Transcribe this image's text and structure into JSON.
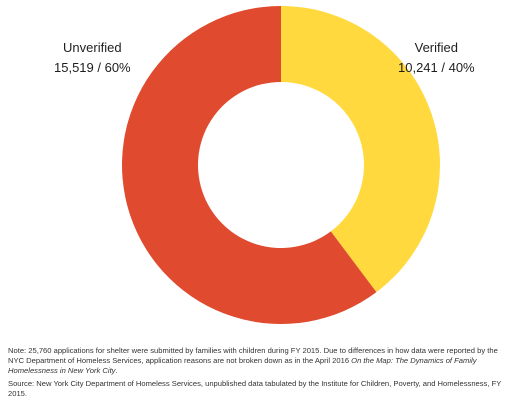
{
  "chart_data": {
    "type": "pie",
    "donut": true,
    "title": "",
    "legend": "none",
    "slices": [
      {
        "name": "Verified",
        "count": 10241,
        "percent": 40,
        "value_label": "10,241 / 40%",
        "color": "#FFD93D"
      },
      {
        "name": "Unverified",
        "count": 15519,
        "percent": 60,
        "value_label": "15,519 / 60%",
        "color": "#E04A2F"
      }
    ],
    "total": 25760
  },
  "notes": {
    "note_text": "Note: 25,760 applications for shelter were submitted by families with children during FY 2015. Due to differences in how data were reported by the NYC Department of Homeless Services, application reasons are not broken down as in the April 2016 ",
    "note_italic": "On the Map: The Dynamics of Family Homelessness in New York City",
    "note_end": ".",
    "source": "Source: New York City Department of Homeless Services, unpublished data tabulated by the Institute for Children, Poverty, and Homelessness, FY 2015."
  }
}
